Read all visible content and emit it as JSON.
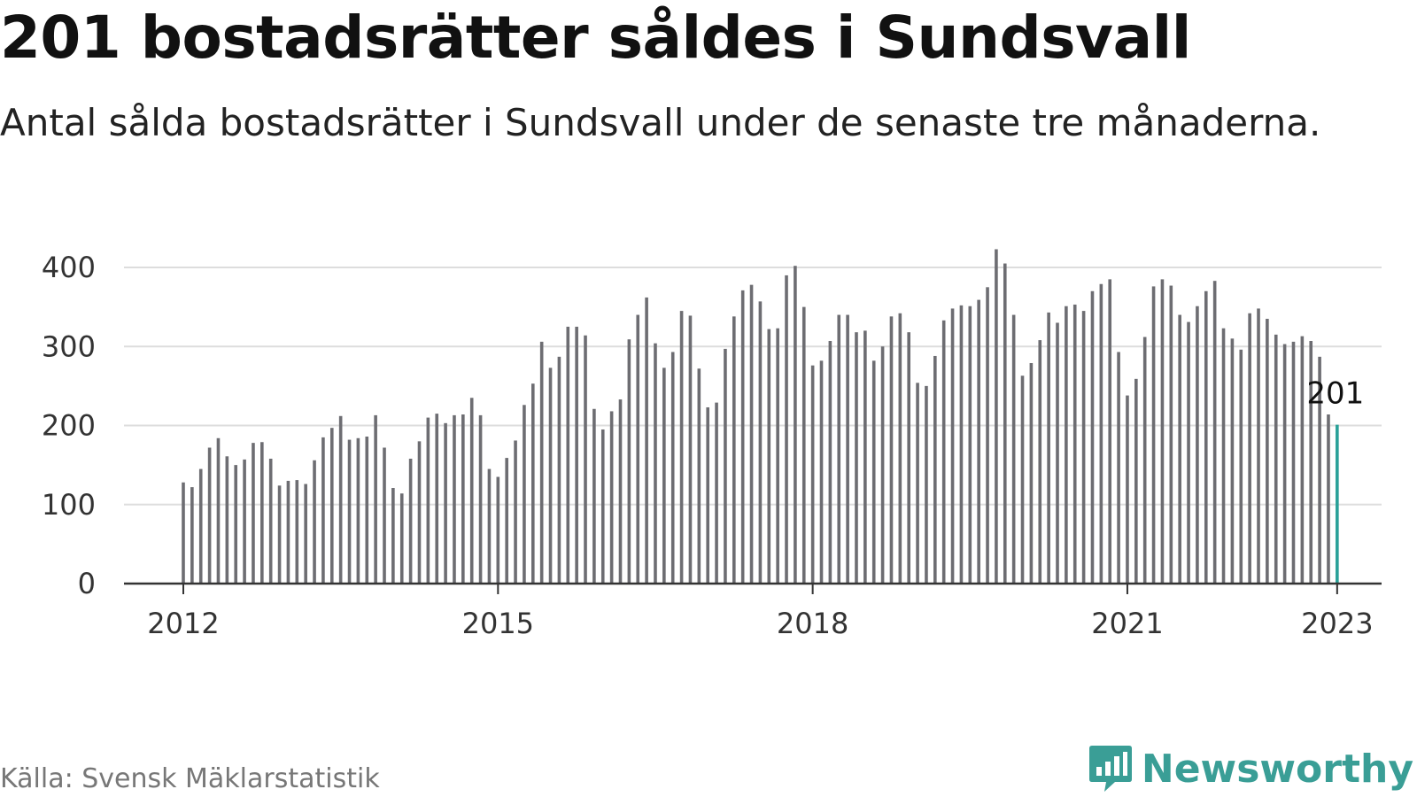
{
  "title": "201 bostadsrätter såldes i Sundsvall",
  "subtitle": "Antal sålda bostadsrätter i Sundsvall under de senaste tre månaderna.",
  "source": "Källa: Svensk Mäklarstatistik",
  "brand": {
    "name": "Newsworthy",
    "color": "#3a9e96",
    "icon": "newsworthy-logo-icon"
  },
  "colors": {
    "bar": "#6d6d72",
    "highlight": "#2aa198",
    "grid": "#dddddd",
    "axis": "#333333"
  },
  "chart_data": {
    "type": "bar",
    "title": "201 bostadsrätter såldes i Sundsvall",
    "subtitle": "Antal sålda bostadsrätter i Sundsvall under de senaste tre månaderna.",
    "ylim": [
      0,
      400
    ],
    "yticks": [
      "0",
      "100",
      "200",
      "300",
      "400"
    ],
    "xticks": [
      "2012",
      "2015",
      "2018",
      "2021",
      "2023"
    ],
    "grid": true,
    "start": "2012-01",
    "frequency": "monthly",
    "annotation": {
      "label": "201",
      "index": 132
    },
    "series": [
      {
        "values": [
          128,
          122,
          145,
          172,
          184,
          161,
          150,
          157,
          178,
          179,
          158,
          124,
          130,
          131,
          126,
          156,
          185,
          197,
          212,
          182,
          184,
          186,
          213,
          172,
          121,
          114,
          158,
          180,
          210,
          215,
          203,
          213,
          214,
          235,
          213,
          145,
          135,
          159,
          181,
          226,
          253,
          306,
          273,
          287,
          325,
          325,
          314,
          221,
          195,
          218,
          233,
          309,
          340,
          362,
          304,
          273,
          293,
          345,
          339,
          272,
          223,
          229,
          297,
          338,
          371,
          378,
          357,
          322,
          323,
          390,
          402,
          350,
          276,
          282,
          307,
          340,
          340,
          318,
          320,
          282,
          300,
          338,
          342,
          318,
          254,
          250,
          288,
          333,
          348,
          352,
          351,
          359,
          375,
          423,
          405,
          340,
          263,
          279,
          308,
          343,
          330,
          351,
          353,
          345,
          370,
          379,
          385,
          293,
          238,
          259,
          312,
          376,
          385,
          377,
          340,
          331,
          351,
          370,
          383,
          323,
          310,
          296,
          342,
          348,
          335,
          315,
          303,
          306,
          313,
          307,
          287,
          214,
          201
        ]
      }
    ]
  }
}
